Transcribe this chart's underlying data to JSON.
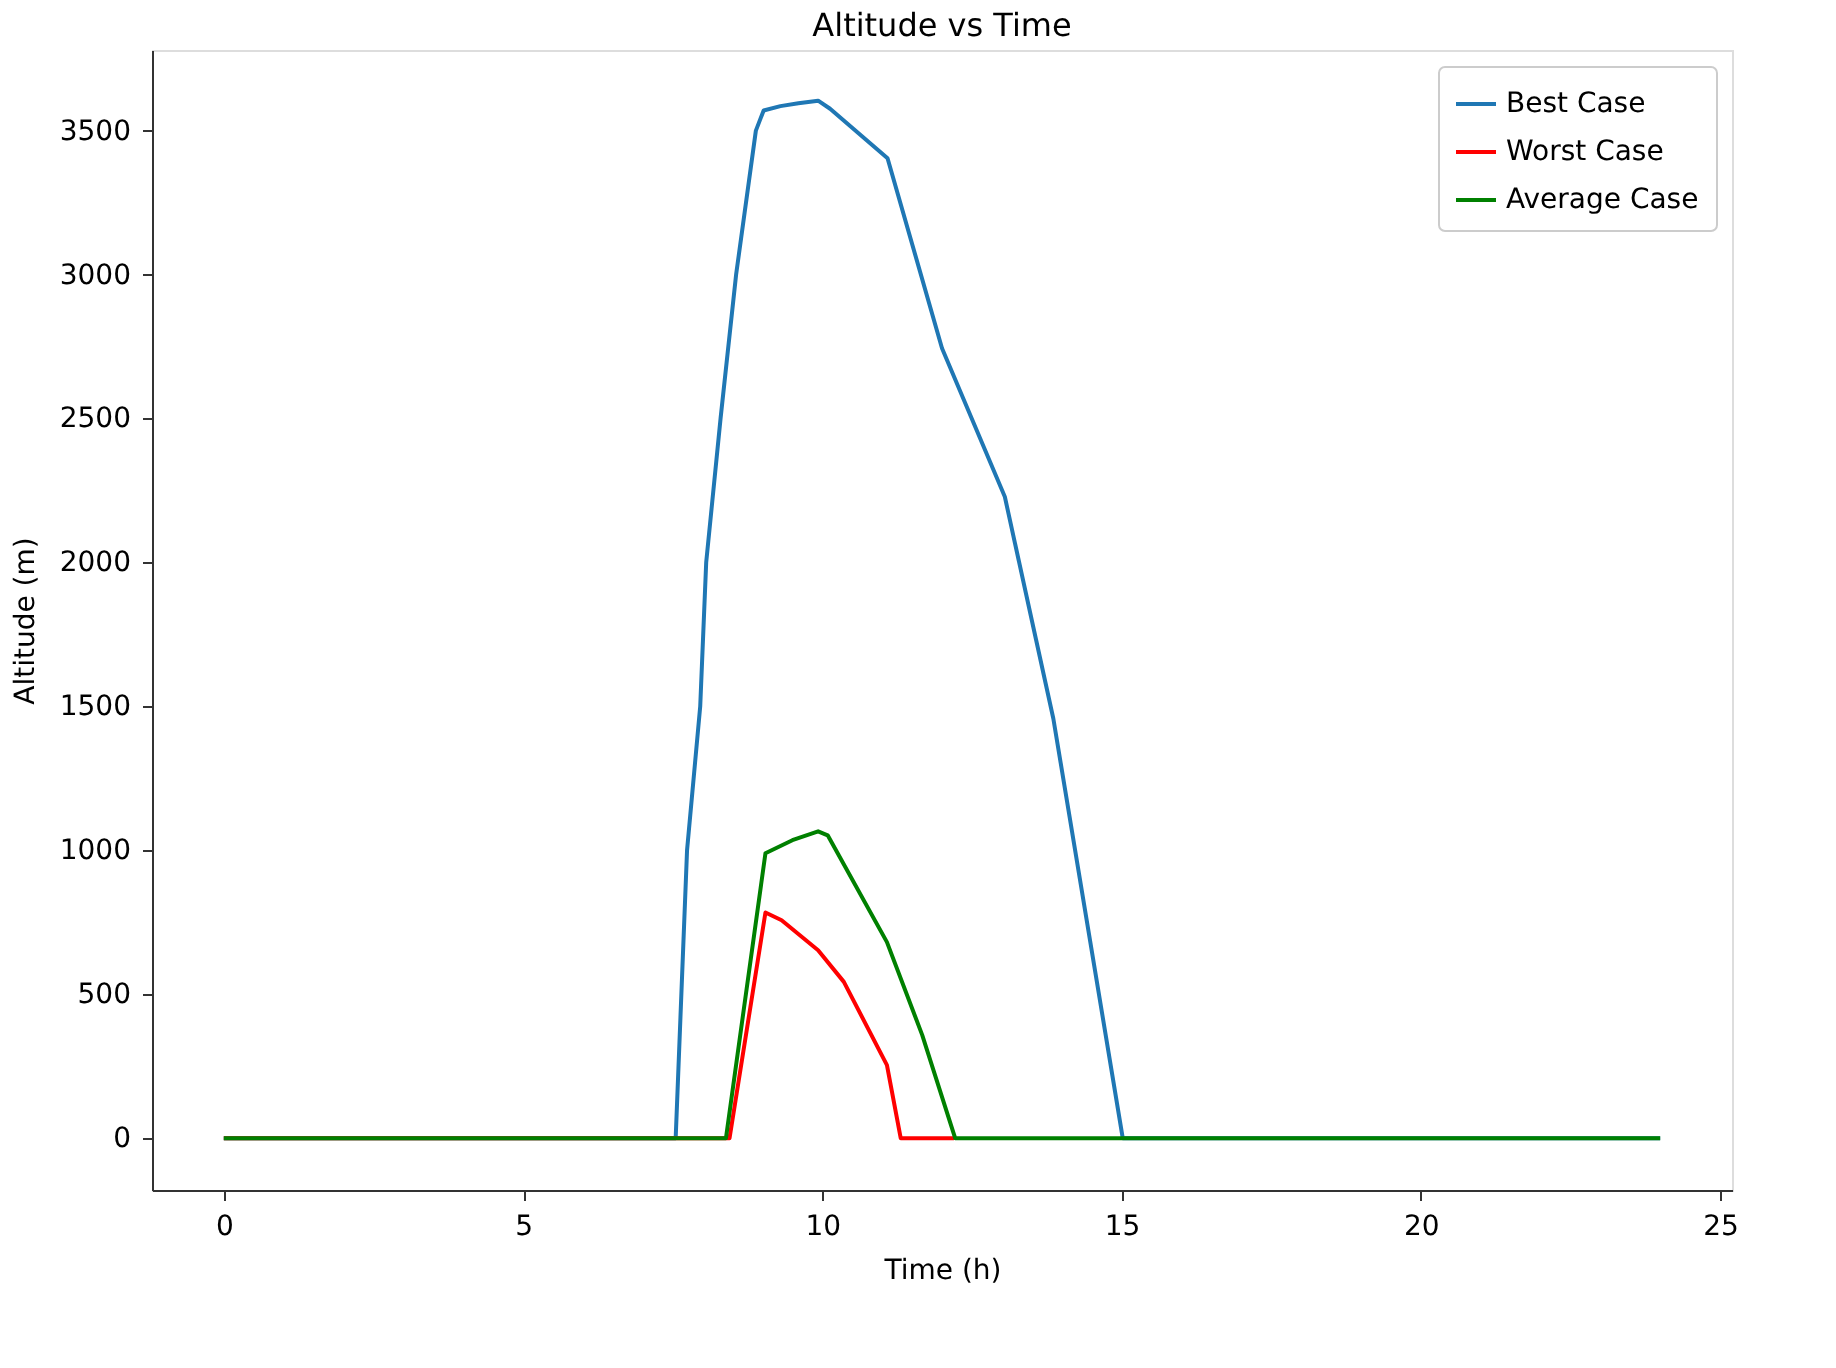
{
  "chart_data": {
    "type": "line",
    "title": "Altitude vs Time",
    "xlabel": "Time (h)",
    "ylabel": "Altitude (m)",
    "xlim": [
      -1.2,
      25.2
    ],
    "xticks": [
      0,
      5,
      10,
      15,
      20,
      25
    ],
    "ylim": [
      -180,
      3780
    ],
    "yticks": [
      0,
      500,
      1000,
      1500,
      2000,
      2500,
      3000,
      3500
    ],
    "grid": false,
    "legend": "top right",
    "marker": "none",
    "line_style": "solid",
    "series": [
      {
        "name": "Best Case",
        "color": "#1f77b4",
        "x": [
          0,
          7.55,
          7.74,
          7.96,
          8.06,
          8.3,
          8.56,
          8.89,
          9.02,
          9.3,
          9.6,
          9.93,
          10.13,
          11.09,
          12.0,
          13.05,
          13.57,
          13.86,
          15.02,
          24
        ],
        "values": [
          0,
          0,
          1000,
          1500,
          2000,
          2500,
          3000,
          3500,
          3570,
          3585,
          3595,
          3604,
          3576,
          3404,
          2744,
          2228,
          1733,
          1458,
          0,
          0
        ]
      },
      {
        "name": "Worst Case",
        "color": "#ff0000",
        "x": [
          0,
          8.45,
          9.05,
          9.32,
          9.93,
          10.36,
          11.08,
          11.31,
          12.2
        ],
        "values": [
          0,
          0,
          784,
          757,
          653,
          543,
          254,
          0,
          0
        ]
      },
      {
        "name": "Average Case",
        "color": "#008000",
        "x": [
          0,
          8.39,
          9.05,
          9.5,
          9.93,
          10.09,
          11.08,
          11.67,
          12.22,
          24
        ],
        "values": [
          0,
          0,
          990,
          1035,
          1066,
          1052,
          681,
          358,
          0,
          0
        ]
      }
    ]
  }
}
